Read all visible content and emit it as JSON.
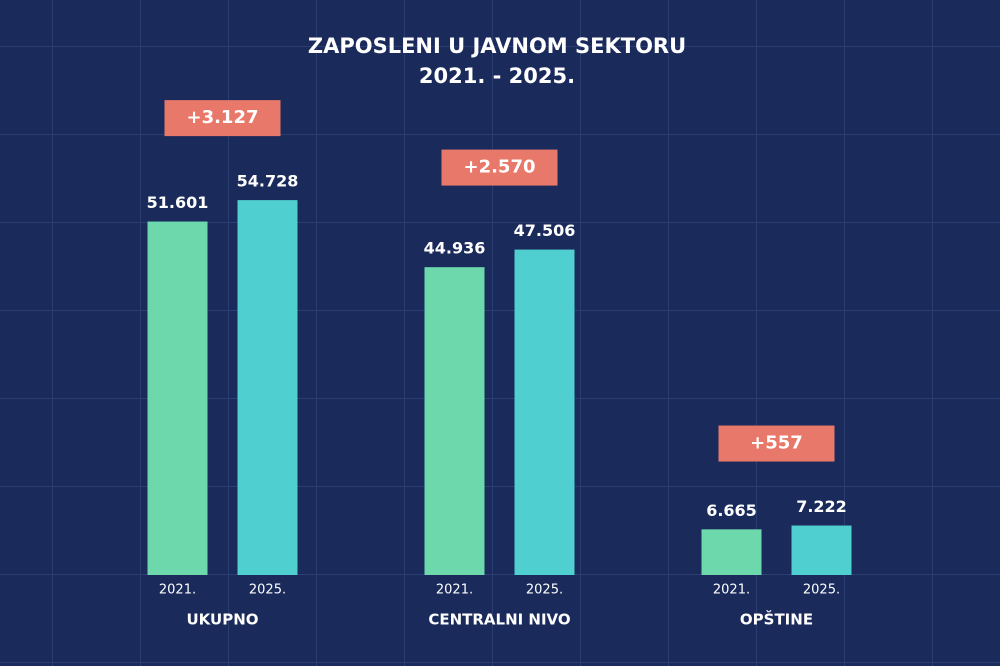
{
  "chart_data": {
    "type": "bar",
    "title": "ZAPOSLENI U JAVNOM SEKTORU",
    "subtitle": "2021. - 2025.",
    "categories": [
      "UKUPNO",
      "CENTRALNI NIVO",
      "OPŠTINE"
    ],
    "series": [
      {
        "name": "2021.",
        "color": "#6ed8ad",
        "values": [
          51601,
          44936,
          6665
        ],
        "value_labels": [
          "51.601",
          "44.936",
          "6.665"
        ]
      },
      {
        "name": "2025.",
        "color": "#4fcfcf",
        "values": [
          54728,
          47506,
          7222
        ],
        "value_labels": [
          "54.728",
          "47.506",
          "7.222"
        ]
      }
    ],
    "annotations": [
      "+3.127",
      "+2.570",
      "+557"
    ],
    "annotation_color": "#e8796a",
    "ylim": [
      0,
      80000
    ]
  }
}
